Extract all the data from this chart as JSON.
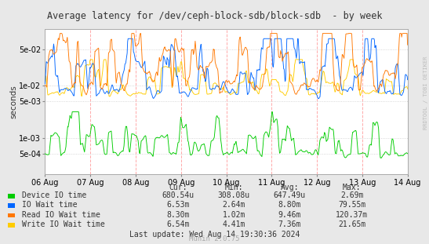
{
  "title": "Average latency for /dev/ceph-block-sdb/block-sdb  - by week",
  "ylabel": "seconds",
  "watermark": "RRDTOOL / TOBI OETIKER",
  "munin_version": "Munin 2.0.75",
  "last_update": "Last update: Wed Aug 14 19:30:36 2024",
  "x_labels": [
    "06 Aug",
    "07 Aug",
    "08 Aug",
    "09 Aug",
    "10 Aug",
    "11 Aug",
    "12 Aug",
    "13 Aug",
    "14 Aug"
  ],
  "bg_color": "#e8e8e8",
  "plot_bg_color": "#ffffff",
  "grid_color": "#cccccc",
  "dashed_grid_color": "#ffaaaa",
  "series": [
    {
      "name": "Device IO time",
      "color": "#00cc00",
      "cur": "680.54u",
      "min": "308.08u",
      "avg": "647.49u",
      "max": "2.69m"
    },
    {
      "name": "IO Wait time",
      "color": "#0066ff",
      "cur": "6.53m",
      "min": "2.64m",
      "avg": "8.80m",
      "max": "79.55m"
    },
    {
      "name": "Read IO Wait time",
      "color": "#ff7700",
      "cur": "8.30m",
      "min": "1.02m",
      "avg": "9.46m",
      "max": "120.37m"
    },
    {
      "name": "Write IO Wait time",
      "color": "#ffcc00",
      "cur": "6.54m",
      "min": "4.41m",
      "avg": "7.36m",
      "max": "21.65m"
    }
  ],
  "n_points": 800
}
